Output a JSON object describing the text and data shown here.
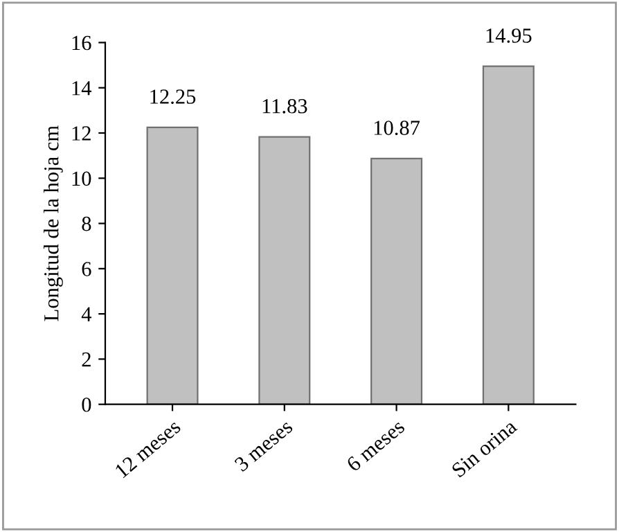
{
  "chart_data": {
    "type": "bar",
    "ylabel": "Longitud de la hoja cm",
    "categories": [
      "12 meses",
      "3 meses",
      "6 meses",
      "Sin orina"
    ],
    "values": [
      12.25,
      11.83,
      10.87,
      14.95
    ],
    "color": "#c0c0c0",
    "ylim": [
      0,
      16
    ],
    "yticks": [
      0,
      2,
      4,
      6,
      8,
      10,
      12,
      14,
      16
    ],
    "grid": false,
    "data_labels": true
  }
}
